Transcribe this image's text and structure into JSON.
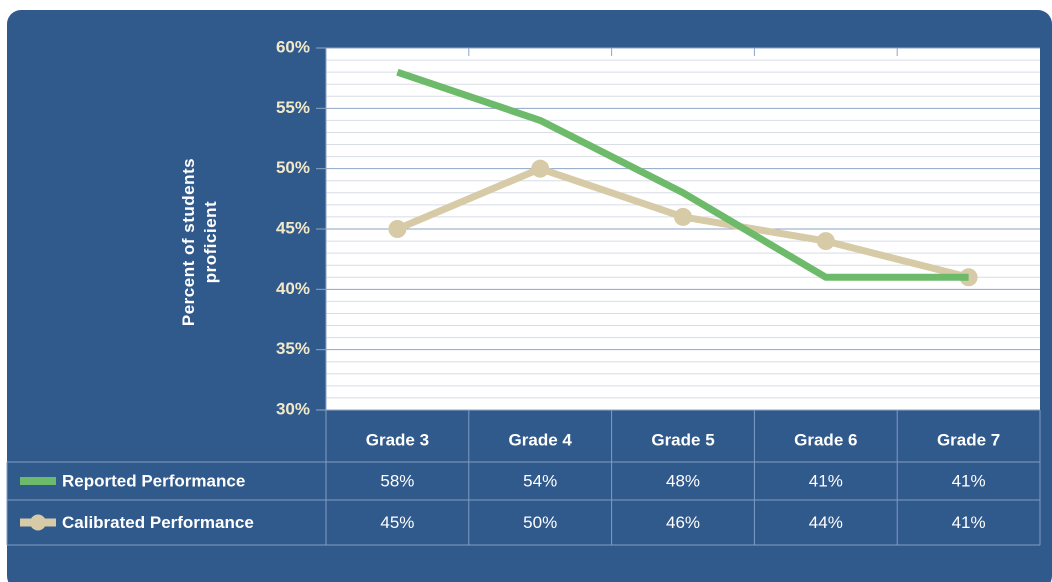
{
  "chart_data": {
    "type": "line",
    "y_label": "Percent of students proficient",
    "categories": [
      "Grade 3",
      "Grade 4",
      "Grade 5",
      "Grade 6",
      "Grade 7"
    ],
    "series": [
      {
        "name": "Reported Performance",
        "color": "#6cba6a",
        "markers": false,
        "values": [
          58,
          54,
          48,
          41,
          41
        ],
        "value_labels": [
          "58%",
          "54%",
          "48%",
          "41%",
          "41%"
        ]
      },
      {
        "name": "Calibrated Performance",
        "color": "#d6cba6",
        "markers": true,
        "values": [
          45,
          50,
          46,
          44,
          41
        ],
        "value_labels": [
          "45%",
          "50%",
          "46%",
          "44%",
          "41%"
        ]
      }
    ],
    "ylim": [
      30,
      60
    ],
    "yticks": [
      {
        "value": 30,
        "label": "30%"
      },
      {
        "value": 35,
        "label": "35%"
      },
      {
        "value": 40,
        "label": "40%"
      },
      {
        "value": 45,
        "label": "45%"
      },
      {
        "value": 50,
        "label": "50%"
      },
      {
        "value": 55,
        "label": "55%"
      },
      {
        "value": 60,
        "label": "60%"
      }
    ],
    "grid": true,
    "minor_grid": true
  }
}
